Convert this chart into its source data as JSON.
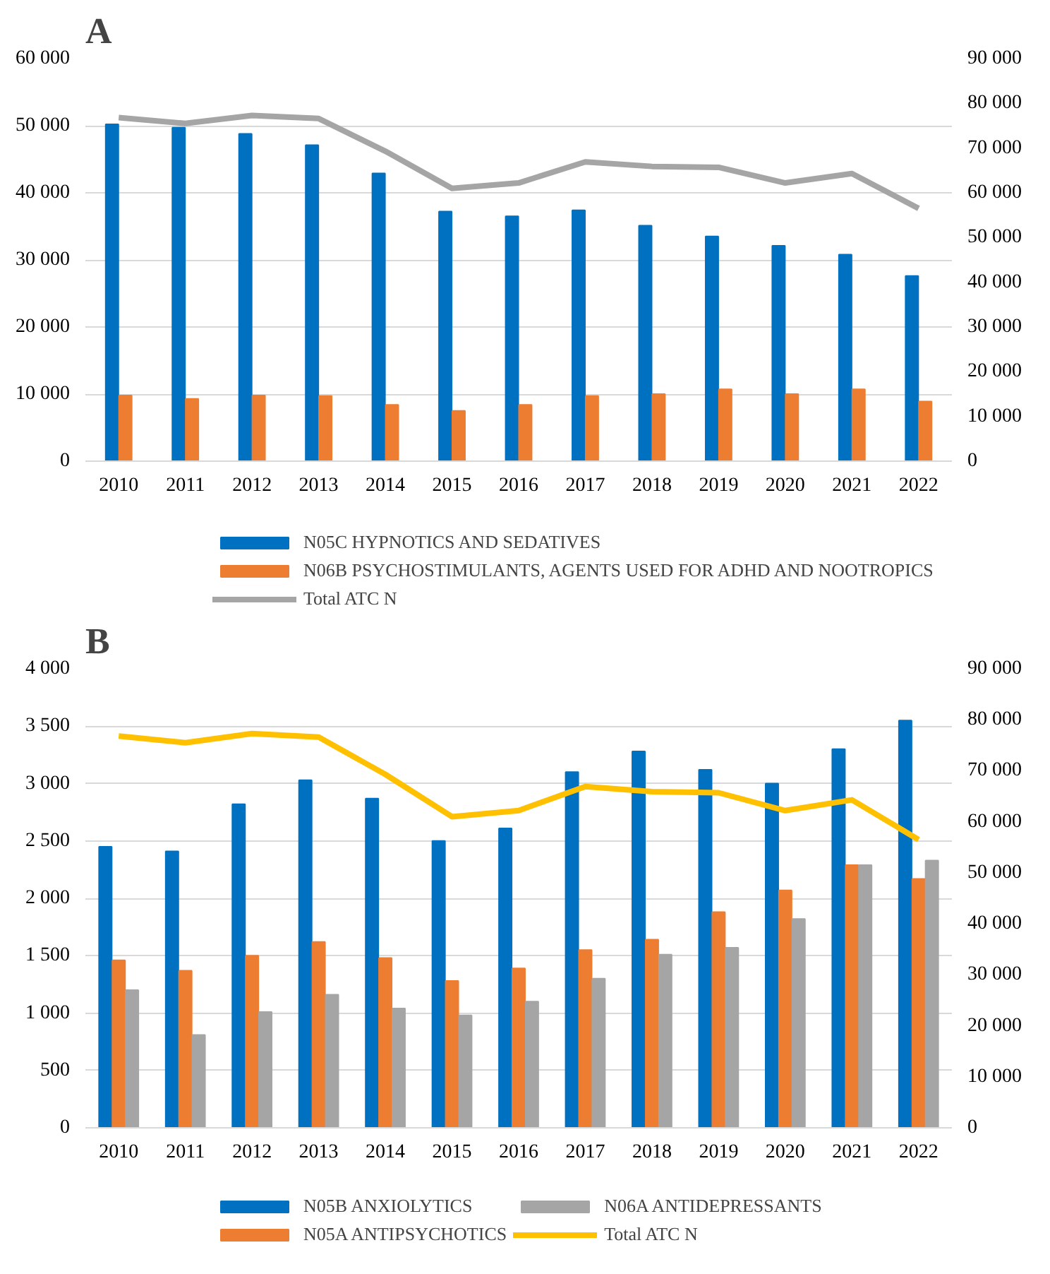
{
  "chart_data": [
    {
      "type": "bar",
      "title": "A",
      "categories": [
        "2010",
        "2011",
        "2012",
        "2013",
        "2014",
        "2015",
        "2016",
        "2017",
        "2018",
        "2019",
        "2020",
        "2021",
        "2022"
      ],
      "series": [
        {
          "name": "N05C HYPNOTICS AND SEDATIVES",
          "color": "#0070c0",
          "values": [
            50200,
            49700,
            48800,
            47100,
            42900,
            37200,
            36500,
            37400,
            35100,
            33500,
            32100,
            30800,
            27600
          ]
        },
        {
          "name": "N06B PSYCHOSTIMULANTS, AGENTS USED FOR ADHD AND NOOTROPICS",
          "color": "#ed7d31",
          "values": [
            9800,
            9300,
            9800,
            9700,
            8400,
            7500,
            8400,
            9700,
            10000,
            10700,
            10000,
            10700,
            8900
          ]
        },
        {
          "name": "Total ATC N",
          "type": "line",
          "axis": "y2",
          "color": "#a5a5a5",
          "values": [
            76800,
            75500,
            77300,
            76600,
            69300,
            61000,
            62200,
            66900,
            65900,
            65700,
            62200,
            64300,
            56500
          ]
        }
      ],
      "ylim": [
        0,
        60000
      ],
      "yticks": [
        {
          "value": 0,
          "label": "0"
        },
        {
          "value": 10000,
          "label": "10 000"
        },
        {
          "value": 20000,
          "label": "20 000"
        },
        {
          "value": 30000,
          "label": "30 000"
        },
        {
          "value": 40000,
          "label": "40 000"
        },
        {
          "value": 50000,
          "label": "50 000"
        },
        {
          "value": 60000,
          "label": "60 000"
        }
      ],
      "y2lim": [
        0,
        90000
      ],
      "y2ticks": [
        {
          "value": 0,
          "label": "0"
        },
        {
          "value": 10000,
          "label": "10 000"
        },
        {
          "value": 20000,
          "label": "20 000"
        },
        {
          "value": 30000,
          "label": "30 000"
        },
        {
          "value": 40000,
          "label": "40 000"
        },
        {
          "value": 50000,
          "label": "50 000"
        },
        {
          "value": 60000,
          "label": "60 000"
        },
        {
          "value": 70000,
          "label": "70 000"
        },
        {
          "value": 80000,
          "label": "80 000"
        },
        {
          "value": 90000,
          "label": "90 000"
        }
      ],
      "grid": "y",
      "legend": "bottom"
    },
    {
      "type": "bar",
      "title": "B",
      "categories": [
        "2010",
        "2011",
        "2012",
        "2013",
        "2014",
        "2015",
        "2016",
        "2017",
        "2018",
        "2019",
        "2020",
        "2021",
        "2022"
      ],
      "series": [
        {
          "name": "N05B ANXIOLYTICS",
          "color": "#0070c0",
          "values": [
            2450,
            2410,
            2820,
            3030,
            2870,
            2500,
            2610,
            3100,
            3280,
            3120,
            3000,
            3300,
            3550
          ]
        },
        {
          "name": "N05A ANTIPSYCHOTICS",
          "color": "#ed7d31",
          "values": [
            1460,
            1370,
            1500,
            1620,
            1480,
            1280,
            1390,
            1550,
            1640,
            1880,
            2070,
            2290,
            2170
          ]
        },
        {
          "name": "N06A ANTIDEPRESSANTS",
          "color": "#a5a5a5",
          "values": [
            1200,
            810,
            1010,
            1160,
            1040,
            980,
            1100,
            1300,
            1510,
            1570,
            1820,
            2290,
            2330
          ]
        },
        {
          "name": "Total ATC N",
          "type": "line",
          "axis": "y2",
          "color": "#ffc000",
          "values": [
            76800,
            75500,
            77300,
            76600,
            69300,
            61000,
            62200,
            66900,
            65900,
            65700,
            62200,
            64300,
            56500
          ]
        }
      ],
      "ylim": [
        0,
        4000
      ],
      "yticks": [
        {
          "value": 0,
          "label": "0"
        },
        {
          "value": 500,
          "label": "500"
        },
        {
          "value": 1000,
          "label": "1 000"
        },
        {
          "value": 1500,
          "label": "1 500"
        },
        {
          "value": 2000,
          "label": "2 000"
        },
        {
          "value": 2500,
          "label": "2 500"
        },
        {
          "value": 3000,
          "label": "3 000"
        },
        {
          "value": 3500,
          "label": "3 500"
        },
        {
          "value": 4000,
          "label": "4 000"
        }
      ],
      "y2lim": [
        0,
        90000
      ],
      "y2ticks": [
        {
          "value": 0,
          "label": "0"
        },
        {
          "value": 10000,
          "label": "10 000"
        },
        {
          "value": 20000,
          "label": "20 000"
        },
        {
          "value": 30000,
          "label": "30 000"
        },
        {
          "value": 40000,
          "label": "40 000"
        },
        {
          "value": 50000,
          "label": "50 000"
        },
        {
          "value": 60000,
          "label": "60 000"
        },
        {
          "value": 70000,
          "label": "70 000"
        },
        {
          "value": 80000,
          "label": "80 000"
        },
        {
          "value": 90000,
          "label": "90 000"
        }
      ],
      "grid": "y",
      "legend": "bottom"
    }
  ]
}
